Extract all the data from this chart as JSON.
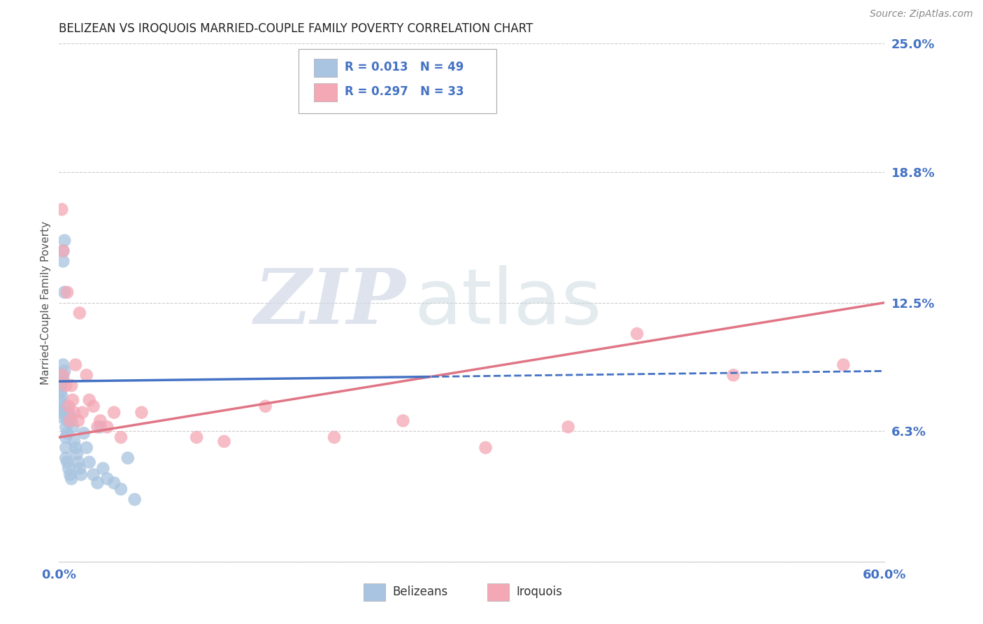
{
  "title": "BELIZEAN VS IROQUOIS MARRIED-COUPLE FAMILY POVERTY CORRELATION CHART",
  "source_text": "Source: ZipAtlas.com",
  "ylabel": "Married-Couple Family Poverty",
  "xlim": [
    0.0,
    0.6
  ],
  "ylim": [
    0.0,
    0.25
  ],
  "xticks": [
    0.0,
    0.1,
    0.2,
    0.3,
    0.4,
    0.5,
    0.6
  ],
  "xticklabels": [
    "0.0%",
    "",
    "",
    "",
    "",
    "",
    "60.0%"
  ],
  "ytick_positions": [
    0.0,
    0.063,
    0.125,
    0.188,
    0.25
  ],
  "ytick_labels": [
    "",
    "6.3%",
    "12.5%",
    "18.8%",
    "25.0%"
  ],
  "belizean_color": "#a8c4e0",
  "iroquois_color": "#f4a7b5",
  "belizean_line_color": "#4472c4",
  "iroquois_line_color": "#e07585",
  "legend_R_belizean": "R = 0.013",
  "legend_N_belizean": "N = 49",
  "legend_R_iroquois": "R = 0.297",
  "legend_N_iroquois": "N = 33",
  "watermark_ZIP": "ZIP",
  "watermark_atlas": "atlas",
  "background_color": "#ffffff",
  "grid_color": "#cccccc",
  "belizean_x": [
    0.001,
    0.001,
    0.001,
    0.001,
    0.001,
    0.002,
    0.002,
    0.002,
    0.002,
    0.003,
    0.003,
    0.003,
    0.003,
    0.004,
    0.004,
    0.004,
    0.004,
    0.005,
    0.005,
    0.005,
    0.005,
    0.006,
    0.006,
    0.006,
    0.007,
    0.007,
    0.008,
    0.008,
    0.009,
    0.009,
    0.01,
    0.011,
    0.012,
    0.013,
    0.014,
    0.015,
    0.016,
    0.018,
    0.02,
    0.022,
    0.025,
    0.028,
    0.03,
    0.032,
    0.035,
    0.04,
    0.045,
    0.05,
    0.055
  ],
  "belizean_y": [
    0.085,
    0.082,
    0.078,
    0.073,
    0.07,
    0.09,
    0.086,
    0.08,
    0.072,
    0.15,
    0.145,
    0.095,
    0.088,
    0.155,
    0.13,
    0.092,
    0.075,
    0.065,
    0.06,
    0.055,
    0.05,
    0.068,
    0.062,
    0.048,
    0.072,
    0.045,
    0.07,
    0.042,
    0.068,
    0.04,
    0.065,
    0.058,
    0.055,
    0.052,
    0.048,
    0.045,
    0.042,
    0.062,
    0.055,
    0.048,
    0.042,
    0.038,
    0.065,
    0.045,
    0.04,
    0.038,
    0.035,
    0.05,
    0.03
  ],
  "iroquois_x": [
    0.002,
    0.003,
    0.003,
    0.005,
    0.006,
    0.007,
    0.008,
    0.009,
    0.01,
    0.011,
    0.012,
    0.014,
    0.015,
    0.017,
    0.02,
    0.022,
    0.025,
    0.028,
    0.03,
    0.035,
    0.04,
    0.045,
    0.06,
    0.1,
    0.12,
    0.15,
    0.2,
    0.25,
    0.31,
    0.37,
    0.42,
    0.49,
    0.57
  ],
  "iroquois_y": [
    0.17,
    0.15,
    0.09,
    0.085,
    0.13,
    0.075,
    0.068,
    0.085,
    0.078,
    0.072,
    0.095,
    0.068,
    0.12,
    0.072,
    0.09,
    0.078,
    0.075,
    0.065,
    0.068,
    0.065,
    0.072,
    0.06,
    0.072,
    0.06,
    0.058,
    0.075,
    0.06,
    0.068,
    0.055,
    0.065,
    0.11,
    0.09,
    0.095
  ],
  "belizean_line_x0": 0.0,
  "belizean_line_y0": 0.087,
  "belizean_line_x1": 0.6,
  "belizean_line_y1": 0.092,
  "iroquois_line_x0": 0.0,
  "iroquois_line_y0": 0.06,
  "iroquois_line_x1": 0.6,
  "iroquois_line_y1": 0.125
}
